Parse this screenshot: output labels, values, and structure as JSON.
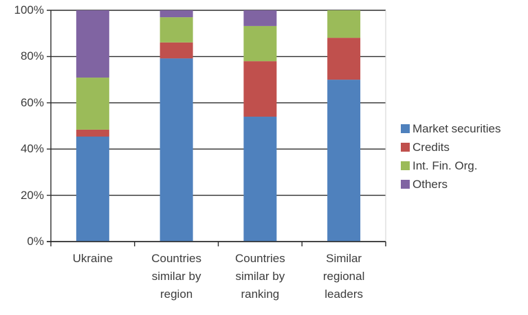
{
  "chart_data": {
    "type": "bar",
    "stacked": true,
    "percent_stacked": true,
    "title": "",
    "xlabel": "",
    "ylabel": "",
    "ylim": [
      0,
      100
    ],
    "yticks": [
      "0%",
      "20%",
      "40%",
      "60%",
      "80%",
      "100%"
    ],
    "grid": "horizontal",
    "legend_position": "right",
    "categories": [
      "Ukraine",
      "Countries\nsimilar by\nregion",
      "Countries\nsimilar by\nranking",
      "Similar\nregional\nleaders"
    ],
    "series": [
      {
        "name": "Market securities",
        "color": "#4f81bd",
        "values": [
          45.4,
          79.2,
          54.0,
          70.0
        ]
      },
      {
        "name": "Credits",
        "color": "#c0504d",
        "values": [
          3.0,
          6.9,
          24.0,
          18.1
        ]
      },
      {
        "name": "Int. Fin. Org.",
        "color": "#9bbb59",
        "values": [
          22.5,
          10.9,
          15.2,
          11.9
        ]
      },
      {
        "name": "Others",
        "color": "#8064a2",
        "values": [
          29.1,
          3.0,
          6.8,
          0.0
        ]
      }
    ]
  }
}
